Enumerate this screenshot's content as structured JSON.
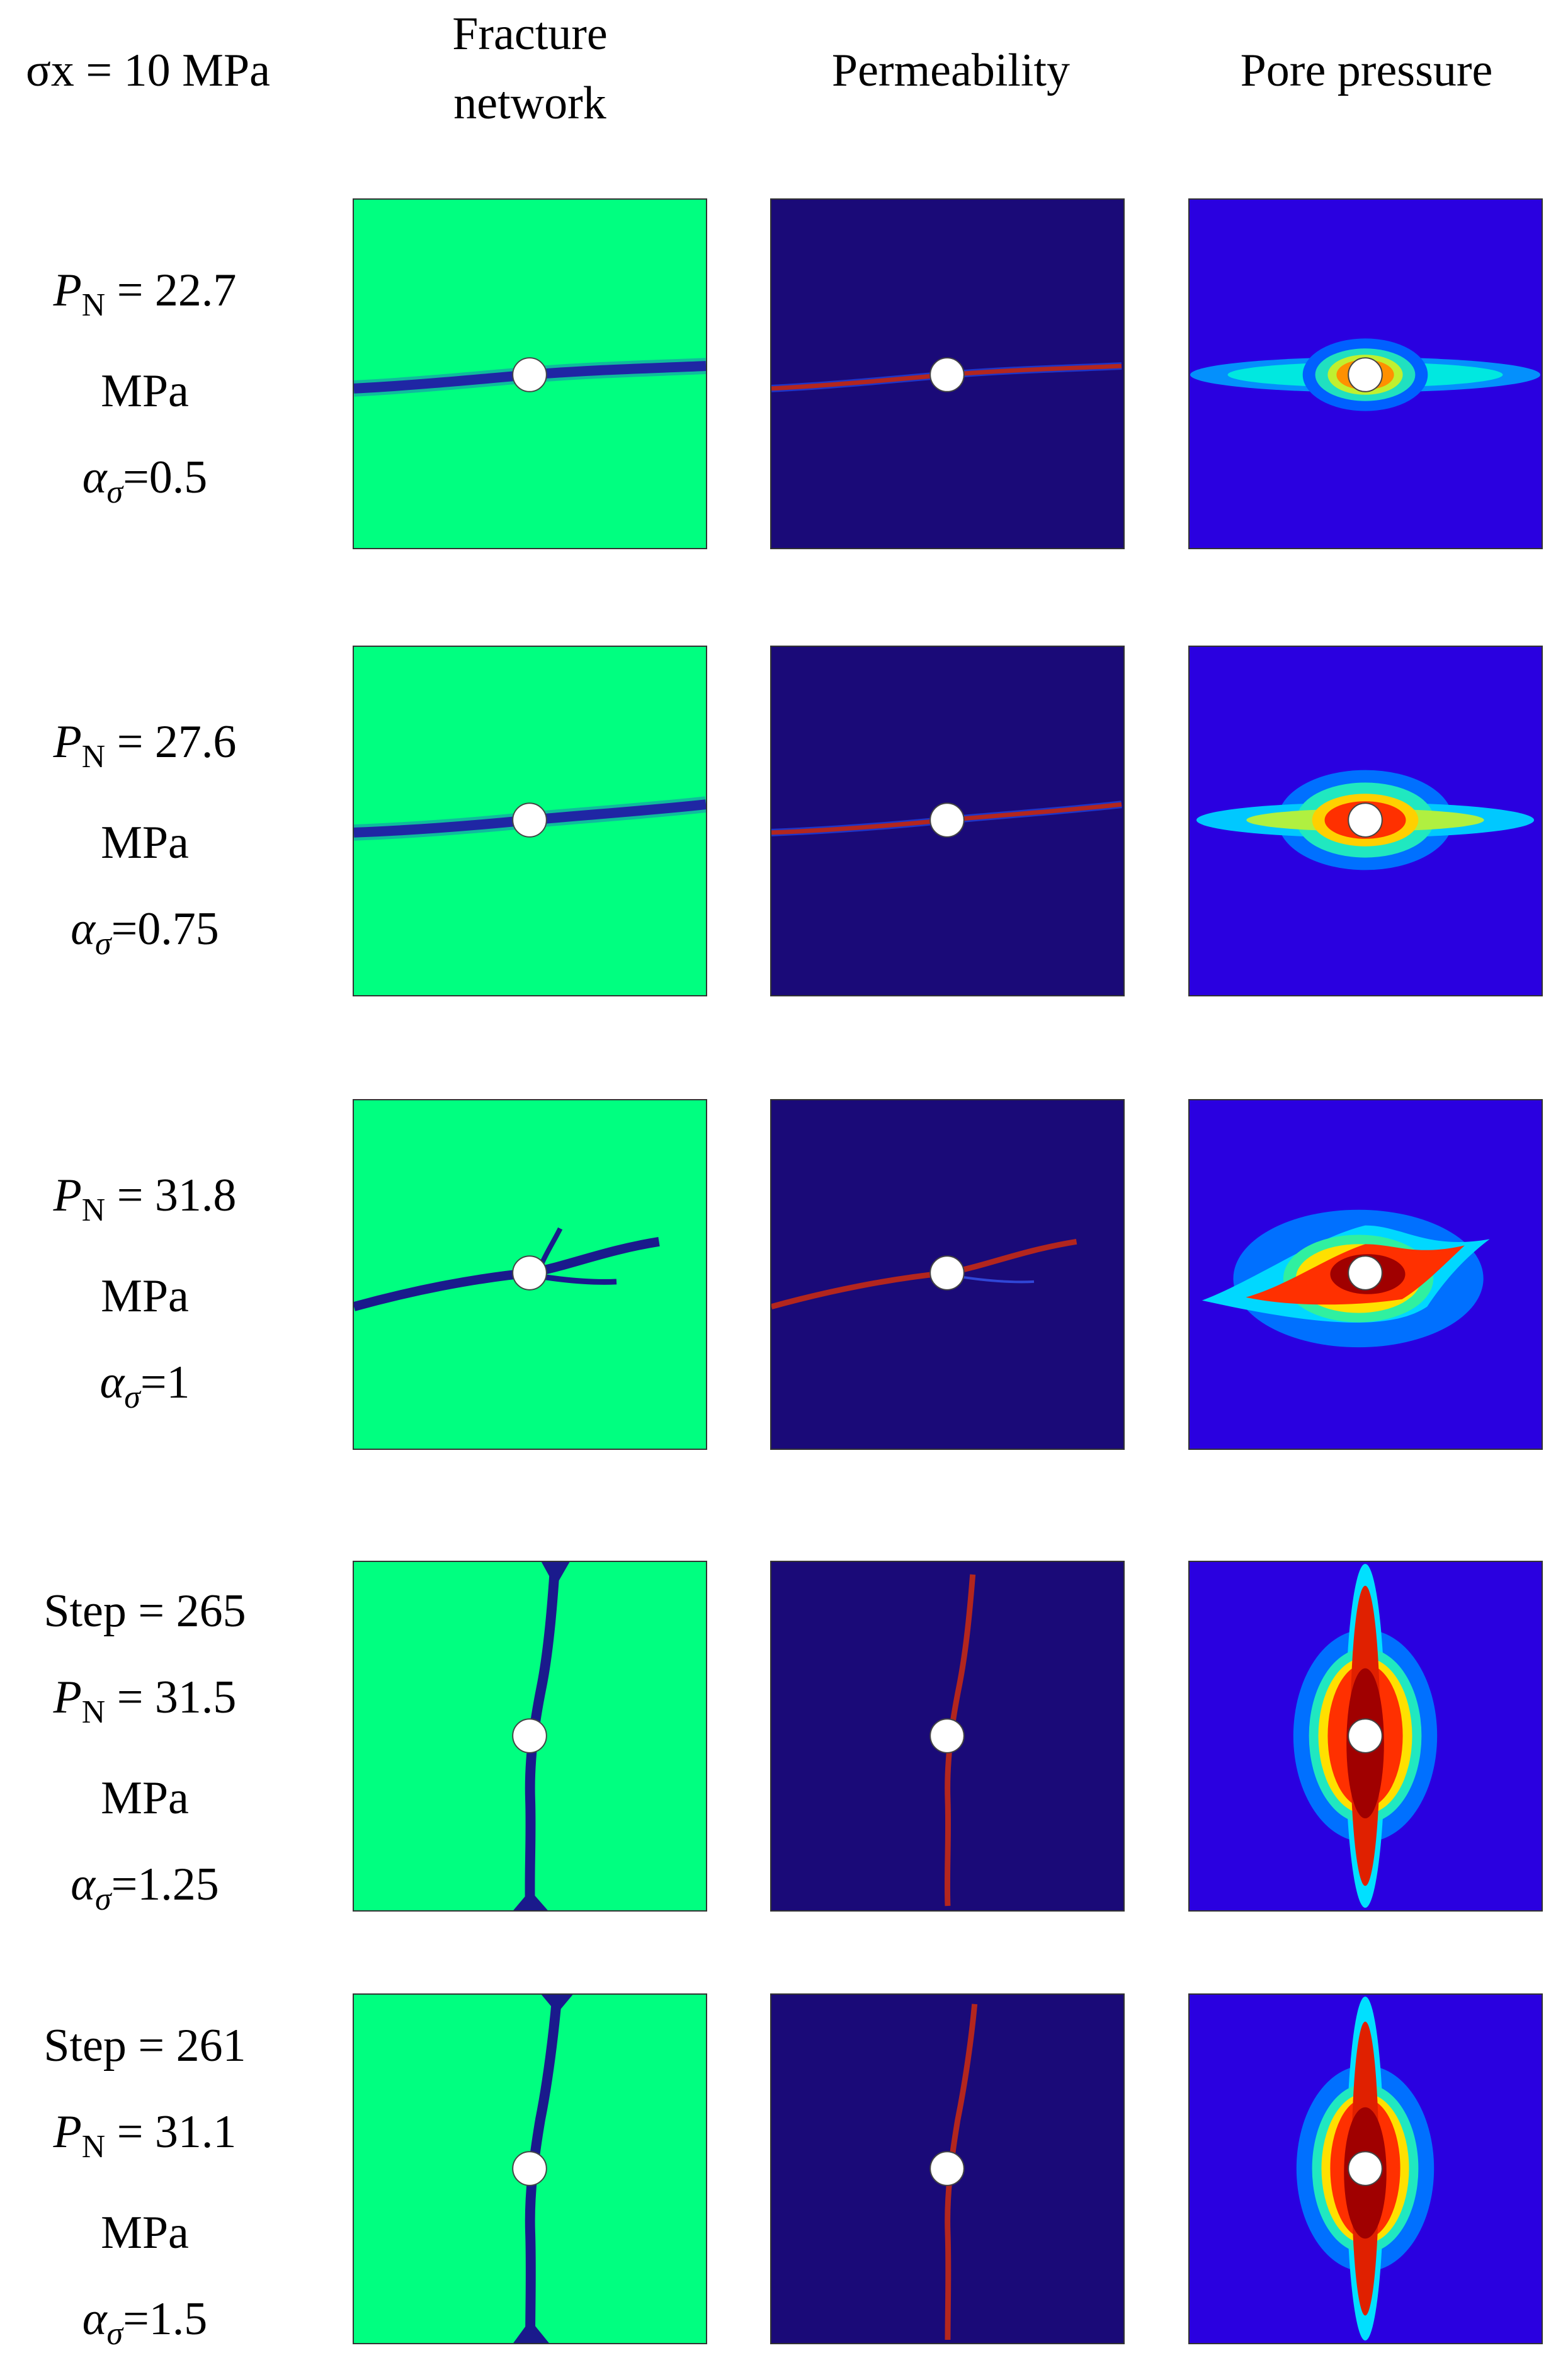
{
  "header": {
    "stress_label": "σx = 10 MPa",
    "col_fracture": "Fracture network",
    "col_permeability": "Permeability",
    "col_pore": "Pore pressure"
  },
  "rows": [
    {
      "step": "",
      "pn_symbol": "P",
      "pn_sub": "N",
      "pn_value": " = 22.7",
      "unit": "MPa",
      "alpha_symbol": "α",
      "alpha_sub": "σ",
      "alpha_value": "=0.5"
    },
    {
      "step": "",
      "pn_symbol": "P",
      "pn_sub": "N",
      "pn_value": " = 27.6",
      "unit": "MPa",
      "alpha_symbol": "α",
      "alpha_sub": "σ",
      "alpha_value": "=0.75"
    },
    {
      "step": "",
      "pn_symbol": "P",
      "pn_sub": "N",
      "pn_value": " = 31.8",
      "unit": "MPa",
      "alpha_symbol": "α",
      "alpha_sub": "σ",
      "alpha_value": "=1"
    },
    {
      "step": "Step = 265",
      "pn_symbol": "P",
      "pn_sub": "N",
      "pn_value": " = 31.5",
      "unit": "MPa",
      "alpha_symbol": "α",
      "alpha_sub": "σ",
      "alpha_value": "=1.25"
    },
    {
      "step": "Step = 261",
      "pn_symbol": "P",
      "pn_sub": "N",
      "pn_value": " = 31.1",
      "unit": "MPa",
      "alpha_symbol": "α",
      "alpha_sub": "σ",
      "alpha_value": "=1.5"
    }
  ],
  "colors": {
    "fracture_background": "#00ff80",
    "fracture_crack": "#1a1a8c",
    "permeability_background": "#1a0a78",
    "permeability_crack": "#b3261e",
    "pressure_background": "#2a00e0",
    "wellbore": "#ffffff"
  }
}
